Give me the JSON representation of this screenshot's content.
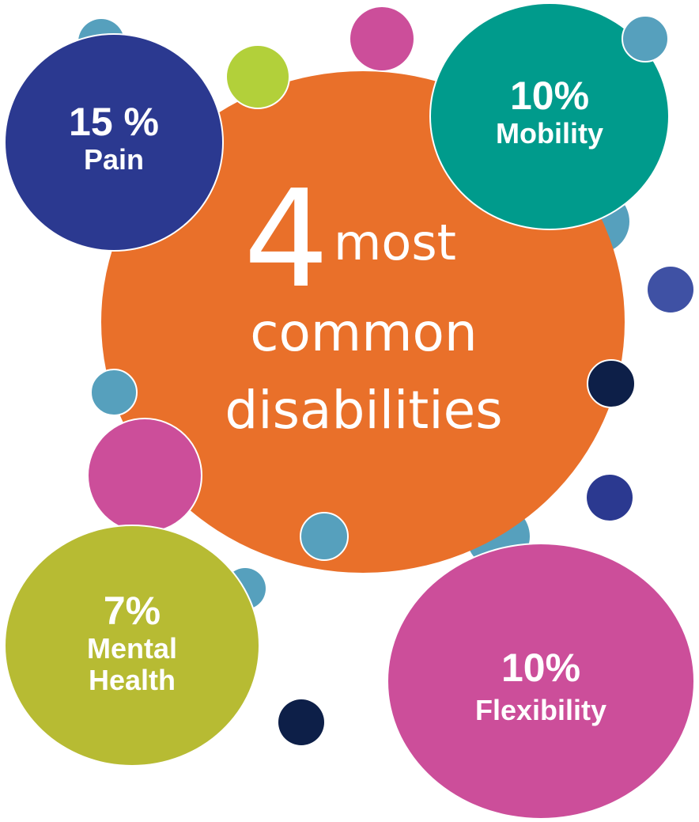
{
  "colors": {
    "orange": "#E9702A",
    "navy": "#2B3990",
    "teal": "#009B8C",
    "magenta": "#CC4E9A",
    "olive": "#B7BB33",
    "lime": "#B2D03A",
    "sky": "#56A0BD",
    "dark_navy": "#0D1F48",
    "indigo": "#3F51A4"
  },
  "center": {
    "number": "4",
    "line1": "most",
    "line2": "common",
    "line3": "disabilities"
  },
  "stats": [
    {
      "percent": "15 %",
      "label": "Pain"
    },
    {
      "percent": "10%",
      "label": "Mobility"
    },
    {
      "percent": "7%",
      "label_line1": "Mental",
      "label_line2": "Health"
    },
    {
      "percent": "10%",
      "label": "Flexibility"
    }
  ]
}
